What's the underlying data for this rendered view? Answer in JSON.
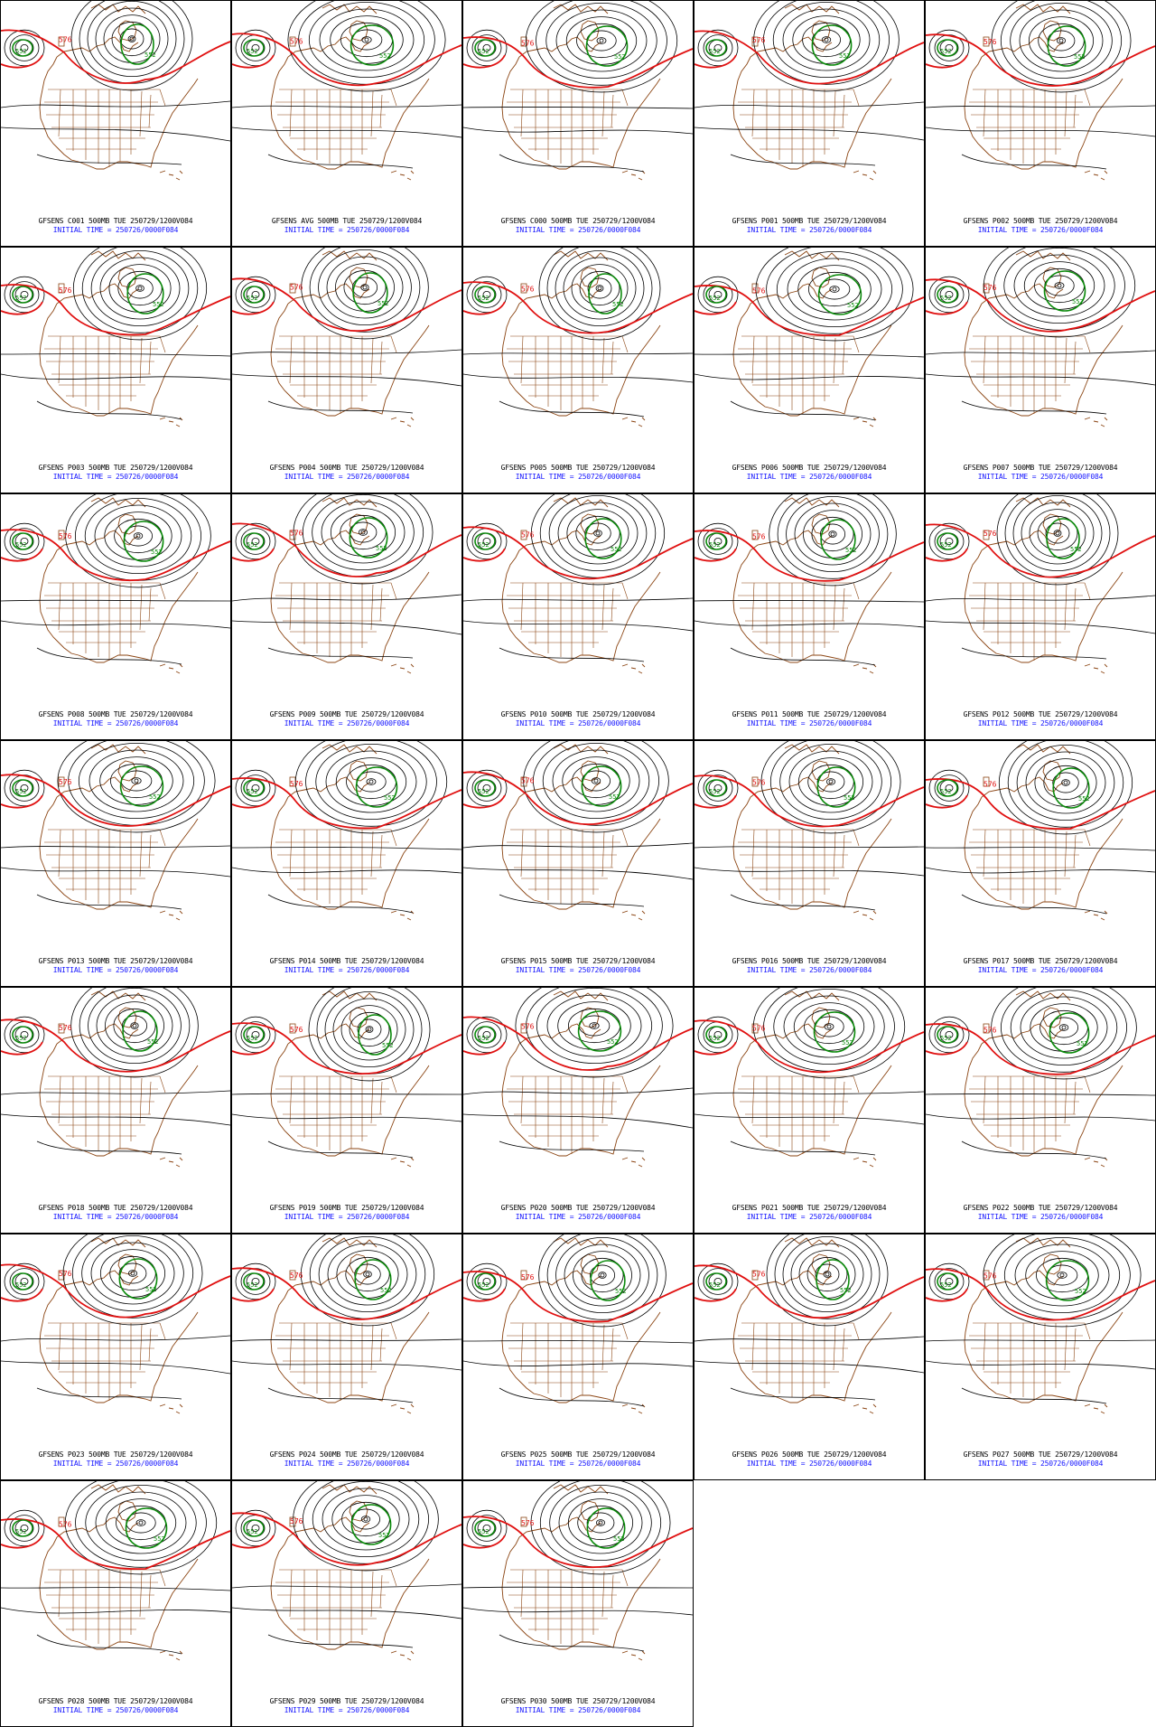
{
  "colors": {
    "background": "#ffffff",
    "height_contour": "#000000",
    "contour_576": "#e01010",
    "contour_552": "#0b8a0b",
    "geography": "#8b4513",
    "initial_time_text": "#1515ff"
  },
  "contour_labels": {
    "red": "576",
    "green": "552"
  },
  "panels": [
    {
      "run": "C001",
      "title": "GFSENS C001 500MB TUE 250729/1200V084",
      "init": "INITIAL TIME = 250726/0000F084"
    },
    {
      "run": "AVG",
      "title": "GFSENS AVG 500MB TUE 250729/1200V084",
      "init": "INITIAL TIME = 250726/0000F084"
    },
    {
      "run": "C000",
      "title": "GFSENS C000 500MB TUE 250729/1200V084",
      "init": "INITIAL TIME = 250726/0000F084"
    },
    {
      "run": "P001",
      "title": "GFSENS P001 500MB TUE 250729/1200V084",
      "init": "INITIAL TIME = 250726/0000F084"
    },
    {
      "run": "P002",
      "title": "GFSENS P002 500MB TUE 250729/1200V084",
      "init": "INITIAL TIME = 250726/0000F084"
    },
    {
      "run": "P003",
      "title": "GFSENS P003 500MB TUE 250729/1200V084",
      "init": "INITIAL TIME = 250726/0000F084"
    },
    {
      "run": "P004",
      "title": "GFSENS P004 500MB TUE 250729/1200V084",
      "init": "INITIAL TIME = 250726/0000F084"
    },
    {
      "run": "P005",
      "title": "GFSENS P005 500MB TUE 250729/1200V084",
      "init": "INITIAL TIME = 250726/0000F084"
    },
    {
      "run": "P006",
      "title": "GFSENS P006 500MB TUE 250729/1200V084",
      "init": "INITIAL TIME = 250726/0000F084"
    },
    {
      "run": "P007",
      "title": "GFSENS P007 500MB TUE 250729/1200V084",
      "init": "INITIAL TIME = 250726/0000F084"
    },
    {
      "run": "P008",
      "title": "GFSENS P008 500MB TUE 250729/1200V084",
      "init": "INITIAL TIME = 250726/0000F084"
    },
    {
      "run": "P009",
      "title": "GFSENS P009 500MB TUE 250729/1200V084",
      "init": "INITIAL TIME = 250726/0000F084"
    },
    {
      "run": "P010",
      "title": "GFSENS P010 500MB TUE 250729/1200V084",
      "init": "INITIAL TIME = 250726/0000F084"
    },
    {
      "run": "P011",
      "title": "GFSENS P011 500MB TUE 250729/1200V084",
      "init": "INITIAL TIME = 250726/0000F084"
    },
    {
      "run": "P012",
      "title": "GFSENS P012 500MB TUE 250729/1200V084",
      "init": "INITIAL TIME = 250726/0000F084"
    },
    {
      "run": "P013",
      "title": "GFSENS P013 500MB TUE 250729/1200V084",
      "init": "INITIAL TIME = 250726/0000F084"
    },
    {
      "run": "P014",
      "title": "GFSENS P014 500MB TUE 250729/1200V084",
      "init": "INITIAL TIME = 250726/0000F084"
    },
    {
      "run": "P015",
      "title": "GFSENS P015 500MB TUE 250729/1200V084",
      "init": "INITIAL TIME = 250726/0000F084"
    },
    {
      "run": "P016",
      "title": "GFSENS P016 500MB TUE 250729/1200V084",
      "init": "INITIAL TIME = 250726/0000F084"
    },
    {
      "run": "P017",
      "title": "GFSENS P017 500MB TUE 250729/1200V084",
      "init": "INITIAL TIME = 250726/0000F084"
    },
    {
      "run": "P018",
      "title": "GFSENS P018 500MB TUE 250729/1200V084",
      "init": "INITIAL TIME = 250726/0000F084"
    },
    {
      "run": "P019",
      "title": "GFSENS P019 500MB TUE 250729/1200V084",
      "init": "INITIAL TIME = 250726/0000F084"
    },
    {
      "run": "P020",
      "title": "GFSENS P020 500MB TUE 250729/1200V084",
      "init": "INITIAL TIME = 250726/0000F084"
    },
    {
      "run": "P021",
      "title": "GFSENS P021 500MB TUE 250729/1200V084",
      "init": "INITIAL TIME = 250726/0000F084"
    },
    {
      "run": "P022",
      "title": "GFSENS P022 500MB TUE 250729/1200V084",
      "init": "INITIAL TIME = 250726/0000F084"
    },
    {
      "run": "P023",
      "title": "GFSENS P023 500MB TUE 250729/1200V084",
      "init": "INITIAL TIME = 250726/0000F084"
    },
    {
      "run": "P024",
      "title": "GFSENS P024 500MB TUE 250729/1200V084",
      "init": "INITIAL TIME = 250726/0000F084"
    },
    {
      "run": "P025",
      "title": "GFSENS P025 500MB TUE 250729/1200V084",
      "init": "INITIAL TIME = 250726/0000F084"
    },
    {
      "run": "P026",
      "title": "GFSENS P026 500MB TUE 250729/1200V084",
      "init": "INITIAL TIME = 250726/0000F084"
    },
    {
      "run": "P027",
      "title": "GFSENS P027 500MB TUE 250729/1200V084",
      "init": "INITIAL TIME = 250726/0000F084"
    },
    {
      "run": "P028",
      "title": "GFSENS P028 500MB TUE 250729/1200V084",
      "init": "INITIAL TIME = 250726/0000F084"
    },
    {
      "run": "P029",
      "title": "GFSENS P029 500MB TUE 250729/1200V084",
      "init": "INITIAL TIME = 250726/0000F084"
    },
    {
      "run": "P030",
      "title": "GFSENS P030 500MB TUE 250729/1200V084",
      "init": "INITIAL TIME = 250726/0000F084"
    }
  ]
}
